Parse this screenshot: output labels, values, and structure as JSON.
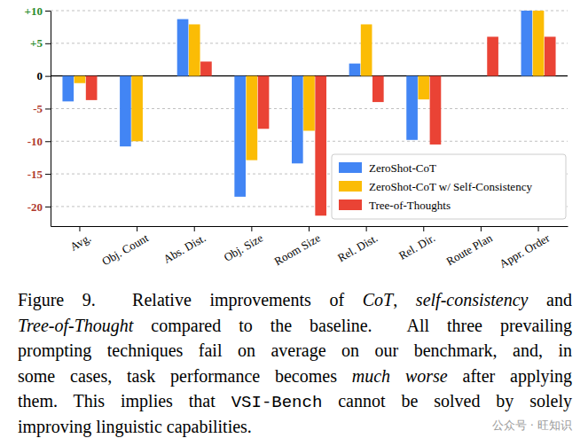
{
  "chart_data": {
    "type": "bar",
    "categories": [
      "Avg.",
      "Obj. Count",
      "Abs. Dist.",
      "Obj. Size",
      "Room Size",
      "Rel. Dist.",
      "Rel. Dir.",
      "Route Plan",
      "Appr. Order"
    ],
    "series": [
      {
        "name": "ZeroShot-CoT",
        "color": "#4285f4",
        "values": [
          -3.9,
          -10.8,
          8.7,
          -18.5,
          -13.4,
          1.9,
          -9.8,
          0,
          10
        ]
      },
      {
        "name": "ZeroShot-CoT w/ Self-Consistency",
        "color": "#fbbc05",
        "values": [
          -1.1,
          -10,
          7.9,
          -12.9,
          -8.4,
          7.9,
          -3.6,
          0,
          10
        ]
      },
      {
        "name": "Tree-of-Thoughts",
        "color": "#ea4335",
        "values": [
          -3.7,
          0,
          2.2,
          -8.1,
          -21.4,
          -4.0,
          -10.5,
          6.0,
          6.0
        ]
      }
    ],
    "ylim": [
      -23,
      10
    ],
    "yticks": [
      -20,
      -15,
      -10,
      -5,
      0,
      {
        "value": 5,
        "label": "+5"
      },
      {
        "value": 10,
        "label": "+10"
      }
    ],
    "grid": true,
    "legend": "lower right",
    "caption": [
      [
        {
          "text": "Figure 9.  Relative improvements of ",
          "style": "normal"
        },
        {
          "text": "CoT",
          "style": "italic"
        },
        {
          "text": ", ",
          "style": "normal"
        },
        {
          "text": "self-consistency",
          "style": "italic"
        },
        {
          "text": " and",
          "style": "normal"
        }
      ],
      [
        {
          "text": "Tree-of-Thought",
          "style": "italic"
        },
        {
          "text": " compared to the baseline.  All three prevailing",
          "style": "normal"
        }
      ],
      [
        {
          "text": "prompting techniques fail on average on our benchmark, and, in",
          "style": "normal"
        }
      ],
      [
        {
          "text": "some cases, task performance becomes ",
          "style": "normal"
        },
        {
          "text": "much worse",
          "style": "italic"
        },
        {
          "text": " after applying",
          "style": "normal"
        }
      ],
      [
        {
          "text": "them. This implies that ",
          "style": "normal"
        },
        {
          "text": "VSI-Bench",
          "style": "mono"
        },
        {
          "text": " cannot be solved by solely",
          "style": "normal"
        }
      ],
      [
        {
          "text": "improving linguistic capabilities.",
          "style": "normal"
        }
      ]
    ],
    "annotations": [
      {
        "text": "公众号 · 旺知识"
      }
    ]
  }
}
